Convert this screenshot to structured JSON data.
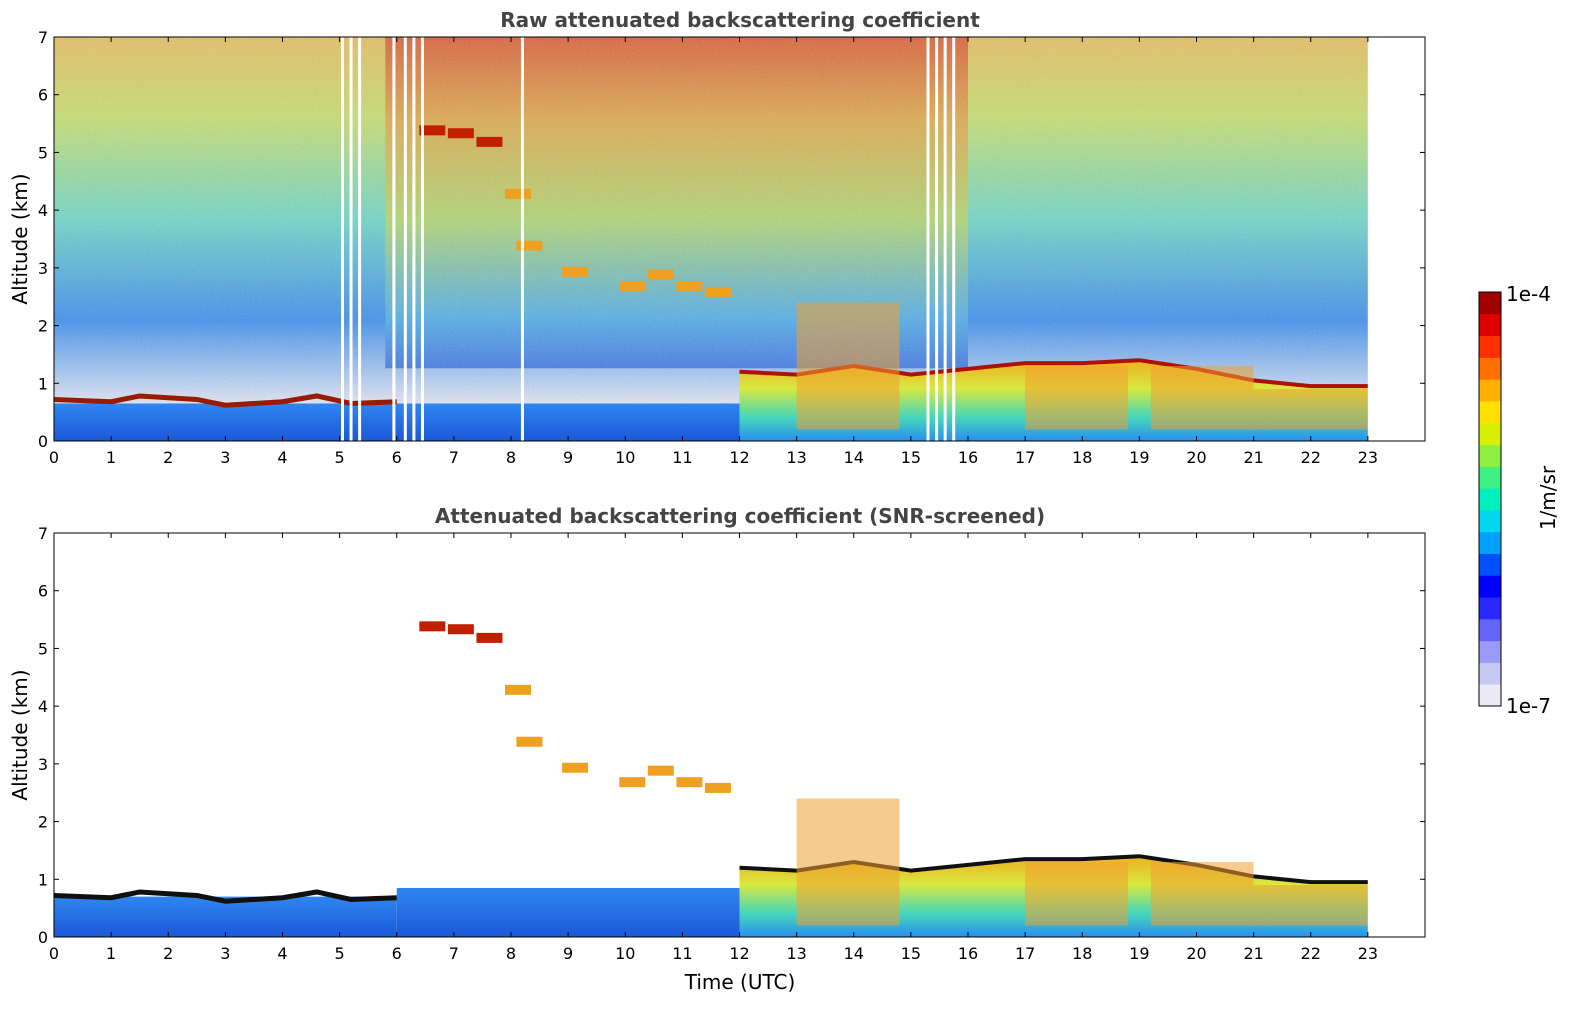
{
  "figure": {
    "top_title": "Raw attenuated backscattering coefficient",
    "bottom_title": "Attenuated backscattering coefficient (SNR-screened)",
    "xlabel": "Time (UTC)",
    "ylabel": "Altitude (km)",
    "colorbar": {
      "max_label": "1e-4",
      "min_label": "1e-7",
      "unit_label": "1/m/sr",
      "colors": [
        "#ebebf7",
        "#c8c8f5",
        "#9a9af8",
        "#6464fb",
        "#2828ff",
        "#0000ff",
        "#0050ff",
        "#00a0ff",
        "#00d8f0",
        "#00f0c0",
        "#40f080",
        "#90f040",
        "#d8f000",
        "#ffe000",
        "#ffb000",
        "#ff7000",
        "#ff3000",
        "#e00000",
        "#a00000"
      ]
    }
  },
  "chart_data": [
    {
      "type": "heatmap",
      "title": "Raw attenuated backscattering coefficient",
      "xlabel": "",
      "ylabel": "Altitude (km)",
      "xlim": [
        0,
        24
      ],
      "ylim": [
        0,
        7
      ],
      "x_ticks": [
        "0",
        "1",
        "2",
        "3",
        "4",
        "5",
        "6",
        "7",
        "8",
        "9",
        "10",
        "11",
        "12",
        "13",
        "14",
        "15",
        "16",
        "17",
        "18",
        "19",
        "20",
        "21",
        "22",
        "23"
      ],
      "y_ticks": [
        "0",
        "1",
        "2",
        "3",
        "4",
        "5",
        "6",
        "7"
      ],
      "scale": "log",
      "color_range": [
        "1e-7",
        "1e-4"
      ],
      "data_end_hour": 23,
      "gaps_hours": [
        5.05,
        5.2,
        5.35,
        5.95,
        6.15,
        6.3,
        6.45,
        8.2,
        15.3,
        15.45,
        15.6,
        15.75
      ],
      "boundary_layer_top_km": [
        [
          0,
          0.72
        ],
        [
          1,
          0.68
        ],
        [
          1.5,
          0.78
        ],
        [
          2.5,
          0.72
        ],
        [
          3,
          0.62
        ],
        [
          4,
          0.68
        ],
        [
          4.6,
          0.78
        ],
        [
          5.2,
          0.65
        ],
        [
          6,
          0.68
        ]
      ],
      "cloud_top_km": [
        [
          12,
          1.2
        ],
        [
          13,
          1.15
        ],
        [
          14,
          1.3
        ],
        [
          15,
          1.15
        ],
        [
          16,
          1.25
        ],
        [
          17,
          1.35
        ],
        [
          18,
          1.35
        ],
        [
          19,
          1.4
        ],
        [
          20,
          1.25
        ],
        [
          21,
          1.05
        ],
        [
          22,
          0.95
        ],
        [
          23,
          0.95
        ]
      ],
      "descending_layer_km": [
        [
          6.5,
          5.4
        ],
        [
          7,
          5.35
        ],
        [
          7.5,
          5.2
        ],
        [
          8,
          4.3
        ],
        [
          8.2,
          3.4
        ],
        [
          9,
          2.95
        ],
        [
          10,
          2.7
        ],
        [
          10.5,
          2.9
        ],
        [
          11,
          2.7
        ],
        [
          11.5,
          2.6
        ]
      ]
    },
    {
      "type": "heatmap",
      "title": "Attenuated backscattering coefficient (SNR-screened)",
      "xlabel": "Time (UTC)",
      "ylabel": "Altitude (km)",
      "xlim": [
        0,
        24
      ],
      "ylim": [
        0,
        7
      ],
      "x_ticks": [
        "0",
        "1",
        "2",
        "3",
        "4",
        "5",
        "6",
        "7",
        "8",
        "9",
        "10",
        "11",
        "12",
        "13",
        "14",
        "15",
        "16",
        "17",
        "18",
        "19",
        "20",
        "21",
        "22",
        "23"
      ],
      "y_ticks": [
        "0",
        "1",
        "2",
        "3",
        "4",
        "5",
        "6",
        "7"
      ],
      "scale": "log",
      "color_range": [
        "1e-7",
        "1e-4"
      ],
      "data_end_hour": 23
    }
  ]
}
